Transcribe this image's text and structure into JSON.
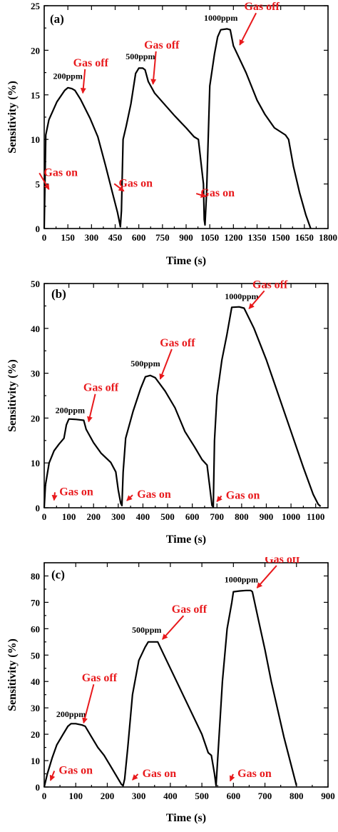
{
  "chart_data": [
    {
      "type": "line",
      "panel_label": "(a)",
      "xlabel": "Time (s)",
      "ylabel": "Sensitivity (%)",
      "xlim": [
        0,
        1800
      ],
      "ylim": [
        0,
        25
      ],
      "xticks": [
        0,
        150,
        300,
        450,
        600,
        750,
        900,
        1050,
        1200,
        1350,
        1500,
        1650,
        1800
      ],
      "yticks": [
        0,
        5,
        10,
        15,
        20,
        25
      ],
      "series": [
        {
          "x": [
            0,
            10,
            30,
            80,
            130,
            150,
            175,
            195,
            230,
            290,
            340,
            390,
            430,
            465,
            480,
            483,
            490,
            500,
            520,
            550,
            580,
            600,
            625,
            640,
            660,
            700,
            760,
            830,
            900,
            950,
            978,
            1010,
            1015,
            1020,
            1030,
            1050,
            1080,
            1100,
            1120,
            1160,
            1180,
            1200,
            1280,
            1350,
            1400,
            1460,
            1530,
            1550,
            1580,
            1620,
            1660,
            1690
          ],
          "y": [
            0,
            10.5,
            12.2,
            14.2,
            15.5,
            15.8,
            15.7,
            15.5,
            14.5,
            12.4,
            10.3,
            7.0,
            4.2,
            1.8,
            0.5,
            0.2,
            2.0,
            10.0,
            11.5,
            14.0,
            17.4,
            18.0,
            18.0,
            17.8,
            16.5,
            15.2,
            14.0,
            12.6,
            11.3,
            10.3,
            10.0,
            5.0,
            1.0,
            0.4,
            4.0,
            16.0,
            19.6,
            21.5,
            22.3,
            22.4,
            22.3,
            20.5,
            17.5,
            14.4,
            12.8,
            11.3,
            10.5,
            10.0,
            7.0,
            4.0,
            1.5,
            0.0
          ]
        }
      ],
      "annotations": [
        {
          "text": "200ppm",
          "x": 150,
          "y": 16.8,
          "kind": "concentration"
        },
        {
          "text": "500ppm",
          "x": 610,
          "y": 19.0,
          "kind": "concentration"
        },
        {
          "text": "1000ppm",
          "x": 1120,
          "y": 23.3,
          "kind": "concentration"
        },
        {
          "text": "Gas off",
          "x": 295,
          "y": 18.2,
          "kind": "event",
          "arrow_to": [
            245,
            15.2
          ]
        },
        {
          "text": "Gas off",
          "x": 745,
          "y": 20.2,
          "kind": "event",
          "arrow_to": [
            690,
            16.2
          ]
        },
        {
          "text": "Gas off",
          "x": 1380,
          "y": 24.5,
          "kind": "event",
          "arrow_to": [
            1240,
            20.6
          ]
        },
        {
          "text": "Gas on",
          "x": 105,
          "y": 5.9,
          "kind": "event",
          "arrow_to": [
            30,
            4.4
          ]
        },
        {
          "text": "Gas on",
          "x": 580,
          "y": 4.7,
          "kind": "event",
          "arrow_to": [
            505,
            4.2
          ]
        },
        {
          "text": "Gas on",
          "x": 1100,
          "y": 3.6,
          "kind": "event",
          "arrow_to": [
            1025,
            3.6
          ]
        }
      ]
    },
    {
      "type": "line",
      "panel_label": "(b)",
      "xlabel": "Time (s)",
      "ylabel": "Sensitivity (%)",
      "xlim": [
        0,
        1150
      ],
      "ylim": [
        0,
        50
      ],
      "xticks": [
        0,
        100,
        200,
        300,
        400,
        500,
        600,
        700,
        800,
        900,
        1000,
        1100
      ],
      "yticks": [
        0,
        10,
        20,
        30,
        40,
        50
      ],
      "series": [
        {
          "x": [
            0,
            5,
            20,
            40,
            60,
            80,
            90,
            100,
            130,
            160,
            170,
            200,
            230,
            270,
            290,
            300,
            310,
            315,
            320,
            330,
            360,
            390,
            410,
            430,
            450,
            490,
            530,
            570,
            610,
            640,
            660,
            670,
            680,
            685,
            690,
            700,
            720,
            740,
            760,
            790,
            810,
            850,
            900,
            950,
            1000,
            1050,
            1090,
            1110,
            1120
          ],
          "y": [
            0,
            5.0,
            10.0,
            12.7,
            14.2,
            15.5,
            18.5,
            19.8,
            19.7,
            19.5,
            17.5,
            14.5,
            12.2,
            10.1,
            8.0,
            4.0,
            1.0,
            0.5,
            8.0,
            15.5,
            21.5,
            26.5,
            29.2,
            29.5,
            29.0,
            26.0,
            22.3,
            17.0,
            13.5,
            10.7,
            9.5,
            5.0,
            0.5,
            0.2,
            15.0,
            25.0,
            33.0,
            38.5,
            44.7,
            44.8,
            44.5,
            40.0,
            33.0,
            25.0,
            17.0,
            9.0,
            3.0,
            0.8,
            0.3
          ]
        }
      ],
      "annotations": [
        {
          "text": "200ppm",
          "x": 105,
          "y": 21.1,
          "kind": "concentration"
        },
        {
          "text": "500ppm",
          "x": 410,
          "y": 31.5,
          "kind": "concentration"
        },
        {
          "text": "1000ppm",
          "x": 800,
          "y": 46.5,
          "kind": "concentration"
        },
        {
          "text": "Gas off",
          "x": 230,
          "y": 26.0,
          "kind": "event",
          "arrow_to": [
            180,
            19.2
          ]
        },
        {
          "text": "Gas off",
          "x": 540,
          "y": 36.0,
          "kind": "event",
          "arrow_to": [
            470,
            28.7
          ]
        },
        {
          "text": "Gas off",
          "x": 915,
          "y": 49.0,
          "kind": "event",
          "arrow_to": [
            830,
            44.4
          ]
        },
        {
          "text": "Gas on",
          "x": 130,
          "y": 2.8,
          "kind": "event",
          "arrow_to": [
            40,
            1.7
          ]
        },
        {
          "text": "Gas on",
          "x": 445,
          "y": 2.2,
          "kind": "event",
          "arrow_to": [
            335,
            1.6
          ]
        },
        {
          "text": "Gas on",
          "x": 805,
          "y": 2.0,
          "kind": "event",
          "arrow_to": [
            700,
            1.4
          ]
        }
      ]
    },
    {
      "type": "line",
      "panel_label": "(c)",
      "xlabel": "Time (s)",
      "ylabel": "Sensitivity (%)",
      "xlim": [
        0,
        900
      ],
      "ylim": [
        0,
        85
      ],
      "xticks": [
        0,
        100,
        200,
        300,
        400,
        500,
        600,
        700,
        800,
        900
      ],
      "yticks": [
        0,
        10,
        20,
        30,
        40,
        50,
        60,
        70,
        80
      ],
      "series": [
        {
          "x": [
            0,
            10,
            25,
            40,
            60,
            75,
            85,
            100,
            120,
            130,
            150,
            170,
            190,
            210,
            230,
            245,
            250,
            255,
            265,
            280,
            300,
            320,
            330,
            345,
            360,
            380,
            420,
            460,
            500,
            520,
            530,
            540,
            545,
            555,
            565,
            580,
            595,
            600,
            620,
            640,
            655,
            660,
            680,
            700,
            720,
            760,
            800
          ],
          "y": [
            0,
            5.0,
            11.0,
            16.0,
            20.0,
            23.0,
            24.0,
            24.0,
            23.5,
            23.0,
            19.0,
            15.0,
            12.0,
            8.0,
            4.0,
            1.0,
            0.5,
            3.0,
            15.0,
            35.0,
            48.0,
            53.0,
            55.0,
            55.0,
            55.0,
            50.0,
            40.0,
            30.0,
            20.0,
            13.0,
            12.0,
            5.0,
            0.5,
            20.0,
            40.0,
            60.0,
            70.0,
            74.0,
            74.3,
            74.5,
            74.5,
            74.0,
            63.0,
            52.0,
            40.0,
            19.0,
            0.5
          ]
        }
      ],
      "annotations": [
        {
          "text": "200ppm",
          "x": 85,
          "y": 26.5,
          "kind": "concentration"
        },
        {
          "text": "500ppm",
          "x": 325,
          "y": 58.5,
          "kind": "concentration"
        },
        {
          "text": "1000ppm",
          "x": 625,
          "y": 77.5,
          "kind": "concentration"
        },
        {
          "text": "Gas off",
          "x": 175,
          "y": 40.0,
          "kind": "event",
          "arrow_to": [
            125,
            24.3
          ]
        },
        {
          "text": "Gas off",
          "x": 460,
          "y": 66.0,
          "kind": "event",
          "arrow_to": [
            375,
            56.0
          ]
        },
        {
          "text": "Gas off",
          "x": 755,
          "y": 85.0,
          "kind": "event",
          "arrow_to": [
            675,
            75.5
          ]
        },
        {
          "text": "Gas on",
          "x": 100,
          "y": 5.0,
          "kind": "event",
          "arrow_to": [
            20,
            2.5
          ]
        },
        {
          "text": "Gas on",
          "x": 365,
          "y": 3.8,
          "kind": "event",
          "arrow_to": [
            280,
            2.7
          ]
        },
        {
          "text": "Gas on",
          "x": 667,
          "y": 3.8,
          "kind": "event",
          "arrow_to": [
            590,
            2.3
          ]
        }
      ]
    }
  ]
}
